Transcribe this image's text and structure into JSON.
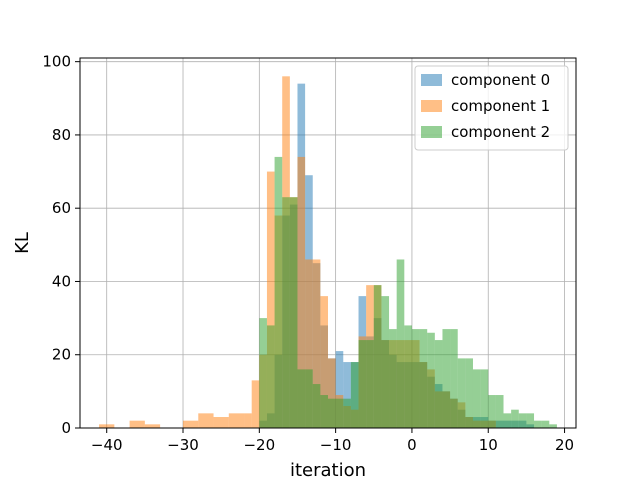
{
  "chart_data": {
    "type": "histogram",
    "xlabel": "iteration",
    "ylabel": "KL",
    "xlim": [
      -43.5,
      21.5
    ],
    "ylim": [
      0,
      101
    ],
    "xticks": [
      -40,
      -30,
      -20,
      -10,
      0,
      10,
      20
    ],
    "yticks": [
      0,
      20,
      40,
      60,
      80,
      100
    ],
    "grid": true,
    "legend_position": "top-right",
    "series": [
      {
        "name": "component 0",
        "color": "#1f77b4",
        "opacity": 0.5,
        "bins": [
          {
            "x0": -20,
            "x1": -19,
            "y": 2
          },
          {
            "x0": -19,
            "x1": -18,
            "y": 4
          },
          {
            "x0": -18,
            "x1": -17,
            "y": 20
          },
          {
            "x0": -17,
            "x1": -16,
            "y": 58
          },
          {
            "x0": -16,
            "x1": -15,
            "y": 61
          },
          {
            "x0": -15,
            "x1": -14,
            "y": 94
          },
          {
            "x0": -14,
            "x1": -13,
            "y": 69
          },
          {
            "x0": -13,
            "x1": -12,
            "y": 45
          },
          {
            "x0": -12,
            "x1": -11,
            "y": 28
          },
          {
            "x0": -11,
            "x1": -10,
            "y": 19
          },
          {
            "x0": -10,
            "x1": -9,
            "y": 21
          },
          {
            "x0": -9,
            "x1": -8,
            "y": 18
          },
          {
            "x0": -8,
            "x1": -7,
            "y": 18
          },
          {
            "x0": -7,
            "x1": -6,
            "y": 36
          },
          {
            "x0": -6,
            "x1": -5,
            "y": 25
          },
          {
            "x0": -5,
            "x1": -4,
            "y": 30
          },
          {
            "x0": -4,
            "x1": -3,
            "y": 24
          },
          {
            "x0": -3,
            "x1": -2,
            "y": 20
          },
          {
            "x0": -2,
            "x1": -1,
            "y": 18
          },
          {
            "x0": -1,
            "x1": 0,
            "y": 18
          },
          {
            "x0": 0,
            "x1": 1,
            "y": 18
          },
          {
            "x0": 1,
            "x1": 2,
            "y": 18
          },
          {
            "x0": 2,
            "x1": 3,
            "y": 14
          },
          {
            "x0": 3,
            "x1": 4,
            "y": 12
          },
          {
            "x0": 4,
            "x1": 5,
            "y": 10
          },
          {
            "x0": 5,
            "x1": 6,
            "y": 8
          },
          {
            "x0": 6,
            "x1": 7,
            "y": 5
          },
          {
            "x0": 7,
            "x1": 8,
            "y": 3
          },
          {
            "x0": 8,
            "x1": 9,
            "y": 3
          },
          {
            "x0": 9,
            "x1": 10,
            "y": 3
          },
          {
            "x0": 10,
            "x1": 11,
            "y": 2
          },
          {
            "x0": 11,
            "x1": 12,
            "y": 2
          },
          {
            "x0": 12,
            "x1": 13,
            "y": 2
          },
          {
            "x0": 13,
            "x1": 14,
            "y": 2
          },
          {
            "x0": 14,
            "x1": 15,
            "y": 2
          },
          {
            "x0": 15,
            "x1": 16,
            "y": 1
          }
        ]
      },
      {
        "name": "component 1",
        "color": "#ff7f0e",
        "opacity": 0.5,
        "bins": [
          {
            "x0": -41,
            "x1": -39,
            "y": 1
          },
          {
            "x0": -37,
            "x1": -35,
            "y": 2
          },
          {
            "x0": -35,
            "x1": -33,
            "y": 1
          },
          {
            "x0": -30,
            "x1": -28,
            "y": 2
          },
          {
            "x0": -28,
            "x1": -26,
            "y": 4
          },
          {
            "x0": -26,
            "x1": -24,
            "y": 3
          },
          {
            "x0": -24,
            "x1": -22,
            "y": 4
          },
          {
            "x0": -22,
            "x1": -21,
            "y": 4
          },
          {
            "x0": -21,
            "x1": -20,
            "y": 13
          },
          {
            "x0": -20,
            "x1": -19,
            "y": 20
          },
          {
            "x0": -19,
            "x1": -18,
            "y": 70
          },
          {
            "x0": -18,
            "x1": -17,
            "y": 58
          },
          {
            "x0": -17,
            "x1": -16,
            "y": 96
          },
          {
            "x0": -16,
            "x1": -15,
            "y": 63
          },
          {
            "x0": -15,
            "x1": -14,
            "y": 74
          },
          {
            "x0": -14,
            "x1": -13,
            "y": 46
          },
          {
            "x0": -13,
            "x1": -12,
            "y": 46
          },
          {
            "x0": -12,
            "x1": -11,
            "y": 36
          },
          {
            "x0": -11,
            "x1": -10,
            "y": 19
          },
          {
            "x0": -10,
            "x1": -9,
            "y": 9
          },
          {
            "x0": -9,
            "x1": -8,
            "y": 6
          },
          {
            "x0": -8,
            "x1": -7,
            "y": 5
          },
          {
            "x0": -7,
            "x1": -6,
            "y": 25
          },
          {
            "x0": -6,
            "x1": -5,
            "y": 39
          },
          {
            "x0": -5,
            "x1": -4,
            "y": 39
          },
          {
            "x0": -4,
            "x1": -3,
            "y": 24
          },
          {
            "x0": -3,
            "x1": -2,
            "y": 24
          },
          {
            "x0": -2,
            "x1": -1,
            "y": 24
          },
          {
            "x0": -1,
            "x1": 0,
            "y": 24
          },
          {
            "x0": 0,
            "x1": 1,
            "y": 24
          },
          {
            "x0": 1,
            "x1": 2,
            "y": 18
          },
          {
            "x0": 2,
            "x1": 3,
            "y": 16
          },
          {
            "x0": 3,
            "x1": 4,
            "y": 10
          },
          {
            "x0": 4,
            "x1": 5,
            "y": 10
          },
          {
            "x0": 5,
            "x1": 6,
            "y": 8
          },
          {
            "x0": 6,
            "x1": 7,
            "y": 7
          },
          {
            "x0": 7,
            "x1": 8,
            "y": 3
          },
          {
            "x0": 8,
            "x1": 9,
            "y": 2
          },
          {
            "x0": 9,
            "x1": 10,
            "y": 2
          },
          {
            "x0": 10,
            "x1": 11,
            "y": 2
          }
        ]
      },
      {
        "name": "component 2",
        "color": "#2ca02c",
        "opacity": 0.5,
        "bins": [
          {
            "x0": -20,
            "x1": -19,
            "y": 30
          },
          {
            "x0": -19,
            "x1": -18,
            "y": 28
          },
          {
            "x0": -18,
            "x1": -17,
            "y": 74
          },
          {
            "x0": -17,
            "x1": -16,
            "y": 63
          },
          {
            "x0": -16,
            "x1": -15,
            "y": 63
          },
          {
            "x0": -15,
            "x1": -14,
            "y": 16
          },
          {
            "x0": -14,
            "x1": -13,
            "y": 16
          },
          {
            "x0": -13,
            "x1": -12,
            "y": 12
          },
          {
            "x0": -12,
            "x1": -11,
            "y": 9
          },
          {
            "x0": -11,
            "x1": -10,
            "y": 8
          },
          {
            "x0": -10,
            "x1": -9,
            "y": 8
          },
          {
            "x0": -9,
            "x1": -8,
            "y": 8
          },
          {
            "x0": -8,
            "x1": -7,
            "y": 18
          },
          {
            "x0": -7,
            "x1": -6,
            "y": 24
          },
          {
            "x0": -6,
            "x1": -5,
            "y": 24
          },
          {
            "x0": -5,
            "x1": -4,
            "y": 39
          },
          {
            "x0": -4,
            "x1": -3,
            "y": 36
          },
          {
            "x0": -3,
            "x1": -2,
            "y": 27
          },
          {
            "x0": -2,
            "x1": -1,
            "y": 46
          },
          {
            "x0": -1,
            "x1": 0,
            "y": 28
          },
          {
            "x0": 0,
            "x1": 1,
            "y": 27
          },
          {
            "x0": 1,
            "x1": 2,
            "y": 27
          },
          {
            "x0": 2,
            "x1": 3,
            "y": 26
          },
          {
            "x0": 3,
            "x1": 4,
            "y": 24
          },
          {
            "x0": 4,
            "x1": 5,
            "y": 27
          },
          {
            "x0": 5,
            "x1": 6,
            "y": 27
          },
          {
            "x0": 6,
            "x1": 7,
            "y": 19
          },
          {
            "x0": 7,
            "x1": 8,
            "y": 19
          },
          {
            "x0": 8,
            "x1": 9,
            "y": 16
          },
          {
            "x0": 9,
            "x1": 10,
            "y": 16
          },
          {
            "x0": 10,
            "x1": 11,
            "y": 9
          },
          {
            "x0": 11,
            "x1": 12,
            "y": 9
          },
          {
            "x0": 12,
            "x1": 13,
            "y": 4
          },
          {
            "x0": 13,
            "x1": 14,
            "y": 5
          },
          {
            "x0": 14,
            "x1": 15,
            "y": 4
          },
          {
            "x0": 15,
            "x1": 16,
            "y": 4
          },
          {
            "x0": 16,
            "x1": 17,
            "y": 2
          },
          {
            "x0": 17,
            "x1": 18,
            "y": 2
          },
          {
            "x0": 18,
            "x1": 19,
            "y": 1
          }
        ]
      }
    ]
  }
}
